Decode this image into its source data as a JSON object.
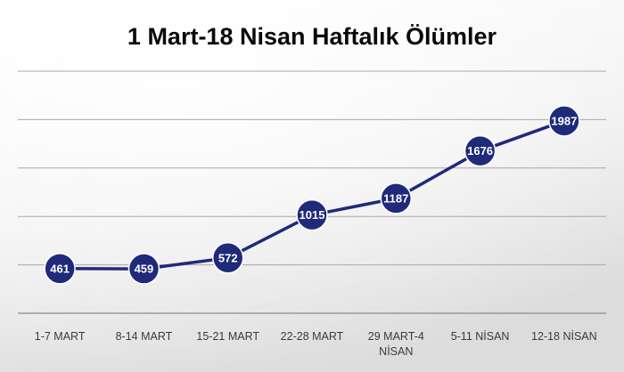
{
  "chart_data": {
    "type": "line",
    "title": "1 Mart-18 Nisan Haftalık Ölümler",
    "xlabel": "",
    "ylabel": "",
    "categories": [
      [
        "1-7 MART"
      ],
      [
        "8-14 MART"
      ],
      [
        "15-21 MART"
      ],
      [
        "22-28 MART"
      ],
      [
        "29 MART-4",
        "NİSAN"
      ],
      [
        "5-11 NİSAN"
      ],
      [
        "12-18 NİSAN"
      ]
    ],
    "series": [
      {
        "values": [
          461,
          459,
          572,
          1015,
          1187,
          1676,
          1987
        ]
      }
    ],
    "ylim": [
      0,
      2500
    ],
    "gridlines": [
      0,
      500,
      1000,
      1500,
      2000,
      2500
    ],
    "grid": true,
    "legend": "none",
    "colors": {
      "line": "#1f2a7a",
      "marker": "#1f2a7a",
      "marker_border": "#ffffff",
      "label": "#ffffff"
    }
  }
}
